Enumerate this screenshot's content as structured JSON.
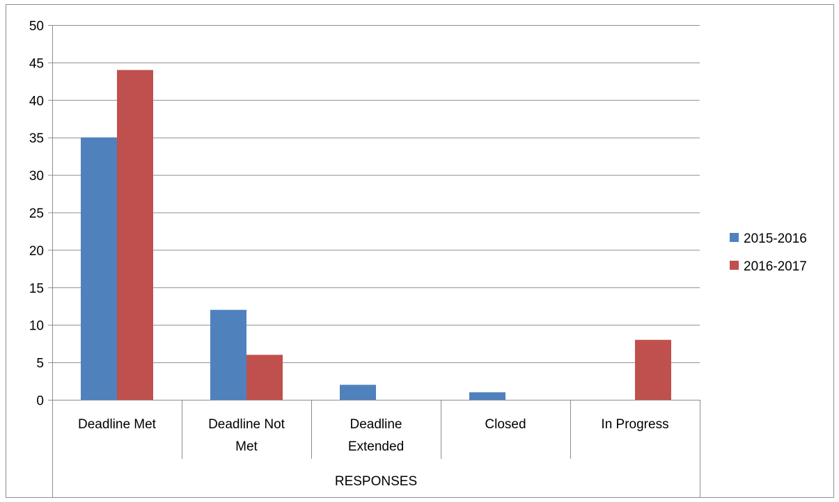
{
  "chart_data": {
    "type": "bar",
    "title": "",
    "xlabel": "RESPONSES",
    "ylabel": "",
    "categories": [
      [
        "Deadline Met"
      ],
      [
        "Deadline Not",
        "Met"
      ],
      [
        "Deadline",
        "Extended"
      ],
      [
        "Closed"
      ],
      [
        "In Progress"
      ]
    ],
    "series": [
      {
        "name": "2015-2016",
        "color": "#4f81bd",
        "values": [
          35,
          12,
          2,
          1,
          0
        ]
      },
      {
        "name": "2016-2017",
        "color": "#c0504d",
        "values": [
          44,
          6,
          0,
          0,
          8
        ]
      }
    ],
    "ylim": [
      0,
      50
    ],
    "yticks": [
      0,
      5,
      10,
      15,
      20,
      25,
      30,
      35,
      40,
      45,
      50
    ],
    "grid": true,
    "legend_position": "right",
    "colors": {
      "gridline": "#8c8c8c",
      "axis": "#8c8c8c",
      "text": "#000000"
    }
  }
}
